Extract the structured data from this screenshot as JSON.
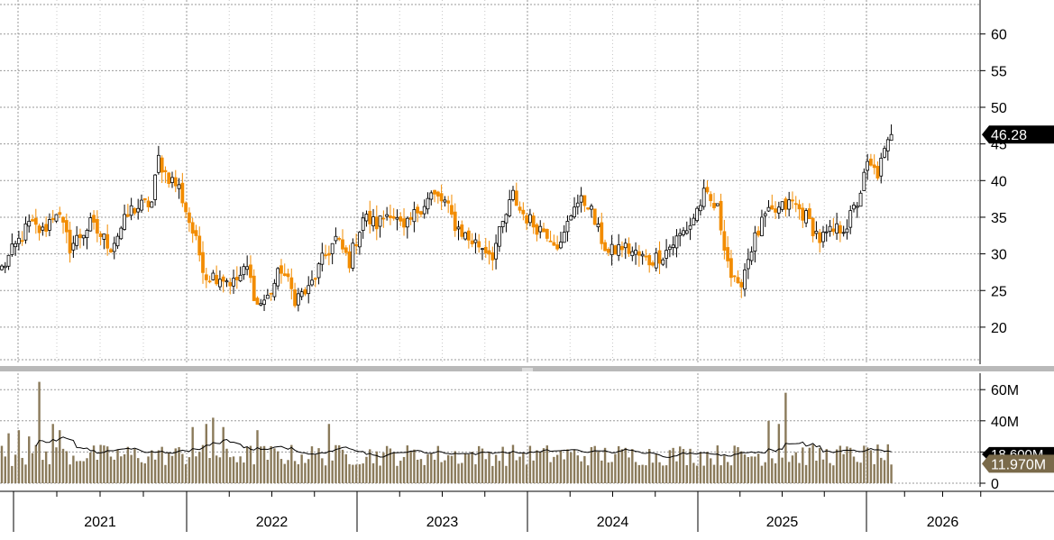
{
  "chart_data": [
    {
      "type": "candlestick",
      "panel": "price",
      "ylim": [
        15,
        65
      ],
      "y_ticks": [
        "20",
        "25",
        "30",
        "35",
        "40",
        "45",
        "50",
        "55",
        "60"
      ],
      "last_price_label": "46.28",
      "grid": true,
      "colors": {
        "up": "#000000",
        "down": "#f28c00",
        "grid": "#9a9a9a",
        "last_box": "#000000"
      },
      "weeks": 250,
      "anchors": [
        {
          "w": 0,
          "v": 28
        },
        {
          "w": 4,
          "v": 31
        },
        {
          "w": 8,
          "v": 34
        },
        {
          "w": 12,
          "v": 33
        },
        {
          "w": 16,
          "v": 36
        },
        {
          "w": 20,
          "v": 31
        },
        {
          "w": 26,
          "v": 34
        },
        {
          "w": 32,
          "v": 31
        },
        {
          "w": 38,
          "v": 36
        },
        {
          "w": 44,
          "v": 37
        },
        {
          "w": 46,
          "v": 43
        },
        {
          "w": 48,
          "v": 41
        },
        {
          "w": 52,
          "v": 39
        },
        {
          "w": 56,
          "v": 33
        },
        {
          "w": 60,
          "v": 27
        },
        {
          "w": 64,
          "v": 27
        },
        {
          "w": 68,
          "v": 26
        },
        {
          "w": 72,
          "v": 28
        },
        {
          "w": 75,
          "v": 23
        },
        {
          "w": 78,
          "v": 24
        },
        {
          "w": 82,
          "v": 28
        },
        {
          "w": 86,
          "v": 24
        },
        {
          "w": 90,
          "v": 25
        },
        {
          "w": 94,
          "v": 29
        },
        {
          "w": 98,
          "v": 32
        },
        {
          "w": 102,
          "v": 29
        },
        {
          "w": 106,
          "v": 35
        },
        {
          "w": 110,
          "v": 34
        },
        {
          "w": 114,
          "v": 36
        },
        {
          "w": 118,
          "v": 33
        },
        {
          "w": 122,
          "v": 36
        },
        {
          "w": 126,
          "v": 38
        },
        {
          "w": 130,
          "v": 37
        },
        {
          "w": 133,
          "v": 34
        },
        {
          "w": 137,
          "v": 32
        },
        {
          "w": 141,
          "v": 31
        },
        {
          "w": 144,
          "v": 30
        },
        {
          "w": 147,
          "v": 34
        },
        {
          "w": 150,
          "v": 38
        },
        {
          "w": 152,
          "v": 36
        },
        {
          "w": 156,
          "v": 34
        },
        {
          "w": 160,
          "v": 33
        },
        {
          "w": 164,
          "v": 31
        },
        {
          "w": 168,
          "v": 37
        },
        {
          "w": 172,
          "v": 37
        },
        {
          "w": 175,
          "v": 33
        },
        {
          "w": 178,
          "v": 30
        },
        {
          "w": 182,
          "v": 31
        },
        {
          "w": 186,
          "v": 30
        },
        {
          "w": 190,
          "v": 29
        },
        {
          "w": 194,
          "v": 30
        },
        {
          "w": 198,
          "v": 32
        },
        {
          "w": 202,
          "v": 34
        },
        {
          "w": 206,
          "v": 38
        },
        {
          "w": 210,
          "v": 36
        },
        {
          "w": 214,
          "v": 27
        },
        {
          "w": 216,
          "v": 25
        },
        {
          "w": 218,
          "v": 28
        },
        {
          "w": 220,
          "v": 31
        },
        {
          "w": 224,
          "v": 35
        },
        {
          "w": 228,
          "v": 36
        },
        {
          "w": 232,
          "v": 37
        },
        {
          "w": 236,
          "v": 35
        },
        {
          "w": 240,
          "v": 32
        },
        {
          "w": 244,
          "v": 33
        },
        {
          "w": 248,
          "v": 34
        },
        {
          "w": 251,
          "v": 37
        },
        {
          "w": 254,
          "v": 42
        },
        {
          "w": 257,
          "v": 41
        },
        {
          "w": 260,
          "v": 45
        },
        {
          "w": 261,
          "v": 46.28
        }
      ]
    },
    {
      "type": "bar",
      "panel": "volume",
      "ylim": [
        0,
        75
      ],
      "y_ticks": [
        "0",
        "20M",
        "40M",
        "60M"
      ],
      "base_volume_m": 18,
      "spikes": [
        {
          "w": 11,
          "v": 65
        },
        {
          "w": 2,
          "v": 32
        },
        {
          "w": 5,
          "v": 34
        },
        {
          "w": 8,
          "v": 30
        },
        {
          "w": 15,
          "v": 38
        },
        {
          "w": 17,
          "v": 34
        },
        {
          "w": 56,
          "v": 36
        },
        {
          "w": 60,
          "v": 38
        },
        {
          "w": 62,
          "v": 42
        },
        {
          "w": 65,
          "v": 36
        },
        {
          "w": 75,
          "v": 34
        },
        {
          "w": 96,
          "v": 38
        },
        {
          "w": 230,
          "v": 58
        },
        {
          "w": 225,
          "v": 40
        },
        {
          "w": 228,
          "v": 38
        }
      ],
      "last_volume_label": "11.970M",
      "average_label": "18.600M",
      "colors": {
        "bar": "#8a7a5a",
        "avg_line": "#000000",
        "last_box": "#7a6a4a"
      }
    }
  ],
  "x_axis": {
    "years": [
      "2021",
      "2022",
      "2023",
      "2024",
      "2025",
      "2026"
    ]
  }
}
